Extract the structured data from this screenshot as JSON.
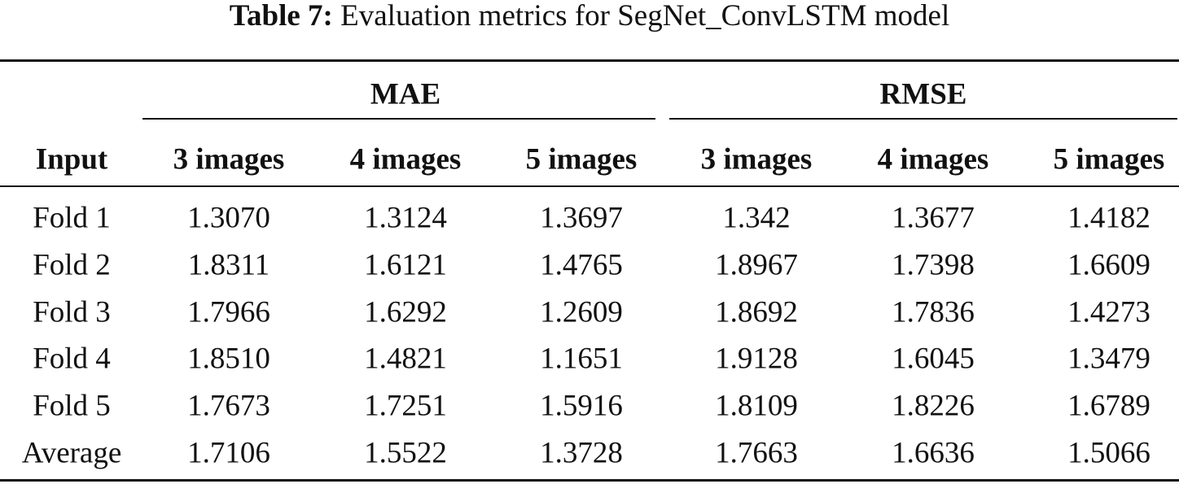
{
  "caption": {
    "label": "Table 7:",
    "text": "Evaluation metrics for SegNet_ConvLSTM model"
  },
  "table": {
    "groups": [
      "MAE",
      "RMSE"
    ],
    "header": [
      "Input",
      "3 images",
      "4 images",
      "5 images",
      "3 images",
      "4 images",
      "5 images"
    ],
    "rows": [
      [
        "Fold 1",
        "1.3070",
        "1.3124",
        "1.3697",
        "1.342",
        "1.3677",
        "1.4182"
      ],
      [
        "Fold 2",
        "1.8311",
        "1.6121",
        "1.4765",
        "1.8967",
        "1.7398",
        "1.6609"
      ],
      [
        "Fold 3",
        "1.7966",
        "1.6292",
        "1.2609",
        "1.8692",
        "1.7836",
        "1.4273"
      ],
      [
        "Fold 4",
        "1.8510",
        "1.4821",
        "1.1651",
        "1.9128",
        "1.6045",
        "1.3479"
      ],
      [
        "Fold 5",
        "1.7673",
        "1.7251",
        "1.5916",
        "1.8109",
        "1.8226",
        "1.6789"
      ],
      [
        "Average",
        "1.7106",
        "1.5522",
        "1.3728",
        "1.7663",
        "1.6636",
        "1.5066"
      ]
    ]
  }
}
